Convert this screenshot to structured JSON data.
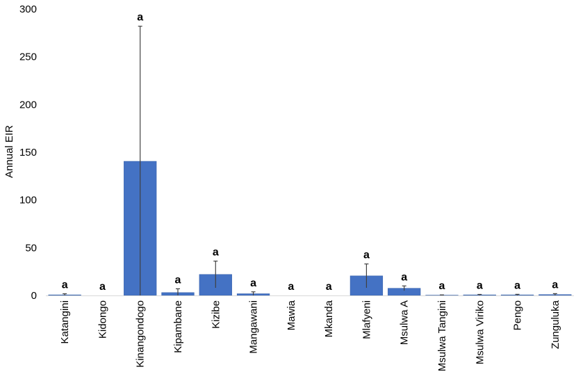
{
  "chart_data": {
    "type": "bar",
    "title": "",
    "xlabel": "",
    "ylabel": "Annual EIR",
    "ylim": [
      0,
      300
    ],
    "yticks": [
      0,
      50,
      100,
      150,
      200,
      250,
      300
    ],
    "grid": false,
    "legend": "none",
    "bar_color": "#4472C4",
    "errorbar_color": "#404040",
    "categories": [
      "Katangini",
      "Kidongo",
      "Kinangondogo",
      "Kipambane",
      "Kizibe",
      "Mangawani",
      "Mawia",
      "Mkanda",
      "Mlafyeni",
      "Msulwa A",
      "Msulwa Tangini",
      "Msulwa Viriko",
      "Pengo",
      "Zunguluka"
    ],
    "values": [
      0.6,
      0,
      140.5,
      3.0,
      22.0,
      1.8,
      0,
      0,
      20.5,
      7.5,
      0.3,
      0.6,
      0.6,
      0.9
    ],
    "error": [
      1.2,
      0,
      141.5,
      4.0,
      14.0,
      2.0,
      0,
      0,
      12.5,
      2.5,
      0.3,
      0.5,
      0.6,
      1.0
    ],
    "significance": [
      "a",
      "a",
      "a",
      "a",
      "a",
      "a",
      "a",
      "a",
      "a",
      "a",
      "a",
      "a",
      "a",
      "a"
    ]
  }
}
